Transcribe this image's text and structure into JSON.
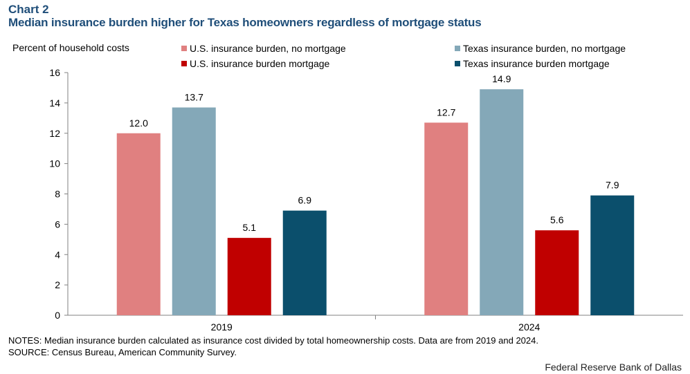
{
  "header": {
    "label": "Chart 2",
    "title": "Median insurance burden higher for Texas homeowners regardless of mortgage status"
  },
  "chart_data": {
    "type": "bar",
    "ylabel": "Percent of household costs",
    "xlabel": "",
    "ylim": [
      0,
      16
    ],
    "yticks": [
      0,
      2,
      4,
      6,
      8,
      10,
      12,
      14,
      16
    ],
    "categories": [
      "2019",
      "2024"
    ],
    "series": [
      {
        "name": "U.S. insurance burden, no mortgage",
        "color": "#e08080",
        "values": [
          12.0,
          12.7
        ],
        "labels": [
          "12.0",
          "12.7"
        ]
      },
      {
        "name": "Texas insurance burden, no mortgage",
        "color": "#84a8b8",
        "values": [
          13.7,
          14.9
        ],
        "labels": [
          "13.7",
          "14.9"
        ]
      },
      {
        "name": "U.S. insurance burden mortgage",
        "color": "#c00000",
        "values": [
          5.1,
          5.6
        ],
        "labels": [
          "5.1",
          "5.6"
        ]
      },
      {
        "name": "Texas insurance burden mortgage",
        "color": "#0b4f6c",
        "values": [
          6.9,
          7.9
        ],
        "labels": [
          "6.9",
          "7.9"
        ]
      }
    ],
    "legend_position": "top"
  },
  "footer": {
    "notes": "NOTES: Median insurance burden calculated as insurance cost divided by total homeownership costs. Data are from 2019 and 2024.",
    "source": "SOURCE: Census Bureau, American Community Survey.",
    "credit": "Federal Reserve Bank of Dallas"
  }
}
